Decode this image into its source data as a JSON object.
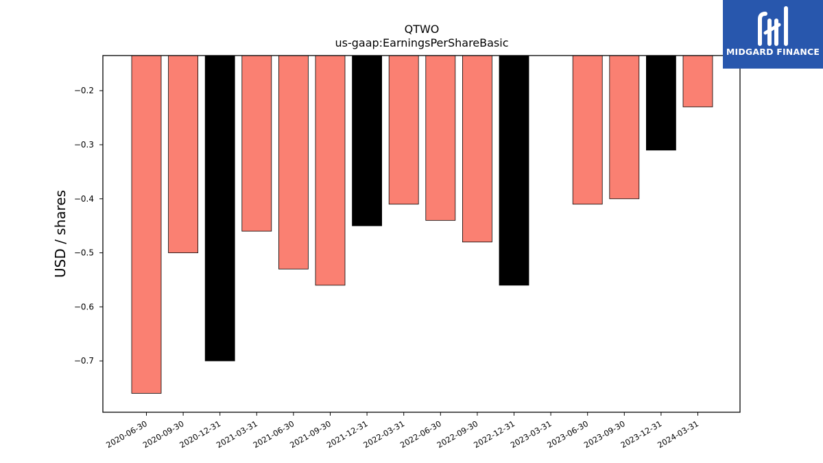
{
  "brand": {
    "name": "MIDGARD FINANCE",
    "bg_color": "#2857ad"
  },
  "chart_data": {
    "type": "bar",
    "title": "QTWO",
    "subtitle": "us-gaap:EarningsPerShareBasic",
    "xlabel": "",
    "ylabel": "USD / shares",
    "categories": [
      "2020-06-30",
      "2020-09-30",
      "2020-12-31",
      "2021-03-31",
      "2021-06-30",
      "2021-09-30",
      "2021-12-31",
      "2022-03-31",
      "2022-06-30",
      "2022-09-30",
      "2022-12-31",
      "2023-03-31",
      "2023-06-30",
      "2023-09-30",
      "2023-12-31",
      "2024-03-31"
    ],
    "values": [
      -0.76,
      -0.5,
      -0.7,
      -0.46,
      -0.53,
      -0.56,
      -0.45,
      -0.41,
      -0.44,
      -0.48,
      -0.56,
      null,
      -0.41,
      -0.4,
      -0.31,
      -0.23
    ],
    "colors": [
      "#fa8072",
      "#fa8072",
      "#000000",
      "#fa8072",
      "#fa8072",
      "#fa8072",
      "#000000",
      "#fa8072",
      "#fa8072",
      "#fa8072",
      "#000000",
      "#fa8072",
      "#fa8072",
      "#fa8072",
      "#000000",
      "#fa8072"
    ],
    "yticks": [
      -0.2,
      -0.3,
      -0.4,
      -0.5,
      -0.6,
      -0.7
    ],
    "ytick_labels": [
      "−0.2",
      "−0.3",
      "−0.4",
      "−0.5",
      "−0.6",
      "−0.7"
    ],
    "ylim": [
      -0.795,
      -0.135
    ],
    "grid": false
  }
}
